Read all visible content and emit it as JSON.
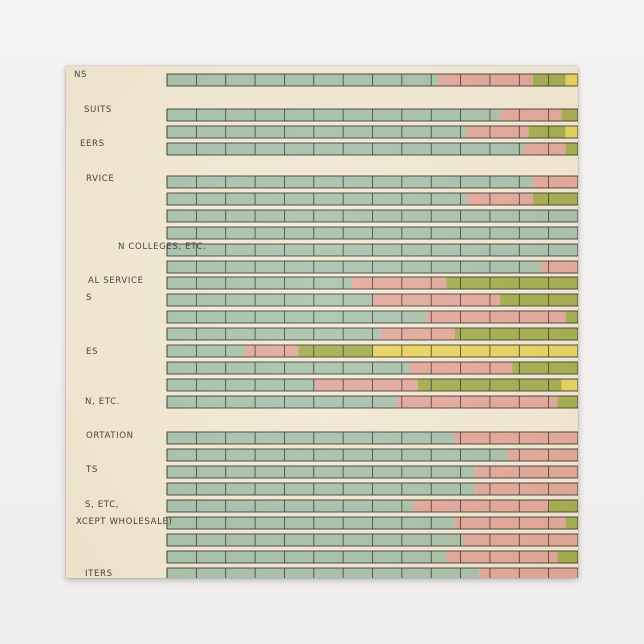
{
  "colors": {
    "paper": "#f3ead6",
    "blue": "#a8c2ac",
    "pink": "#e4a89c",
    "olive": "#a3ad4e",
    "yellow": "#ead35e",
    "cell_rule": "#33362f"
  },
  "chart_data": {
    "type": "bar",
    "orientation": "horizontal",
    "stacked": true,
    "scale_max": 100,
    "grid_divisions": 14,
    "series_colors": [
      "blue",
      "pink",
      "olive",
      "yellow"
    ],
    "groups": [
      {
        "label_lines": [
          "NS"
        ],
        "bars": [
          [
            66,
            23,
            8,
            3
          ]
        ]
      },
      {
        "label_lines": [
          "SUITS",
          "EERS"
        ],
        "bars": [
          [
            81,
            15,
            4,
            0
          ],
          [
            73,
            15,
            9,
            3
          ],
          [
            87,
            10,
            3,
            0
          ]
        ]
      },
      {
        "label_lines": [
          "RVICE",
          "N COLLEGES, ETC."
        ],
        "bars": [
          [
            89,
            11,
            0,
            0
          ],
          [
            73,
            16,
            11,
            0
          ],
          [
            100,
            0,
            0,
            0
          ],
          [
            100,
            0,
            0,
            0
          ],
          [
            100,
            0,
            0,
            0
          ],
          [
            91,
            9,
            0,
            0
          ]
        ]
      },
      {
        "label_lines": [
          "AL SERVICE",
          "S",
          "ES",
          "N, ETC."
        ],
        "bars": [
          [
            45,
            23,
            32,
            0
          ],
          [
            50,
            31,
            19,
            0
          ],
          [
            63,
            34,
            3,
            0
          ],
          [
            52,
            18,
            30,
            0
          ],
          [
            19,
            13,
            18,
            50
          ],
          [
            59,
            25,
            16,
            0
          ],
          [
            36,
            25,
            35,
            4
          ],
          [
            56,
            39,
            5,
            0
          ]
        ]
      },
      {
        "label_lines": [
          "ORTATION",
          "TS",
          "S, ETC,",
          "XCEPT WHOLESALE)",
          "ITERS"
        ],
        "bars": [
          [
            70,
            30,
            0,
            0
          ],
          [
            83,
            17,
            0,
            0
          ],
          [
            75,
            25,
            0,
            0
          ],
          [
            75,
            25,
            0,
            0
          ],
          [
            60,
            33,
            7,
            0
          ],
          [
            70,
            27,
            3,
            0
          ],
          [
            72,
            28,
            0,
            0
          ],
          [
            68,
            27,
            5,
            0
          ],
          [
            76,
            24,
            0,
            0
          ]
        ]
      }
    ]
  }
}
